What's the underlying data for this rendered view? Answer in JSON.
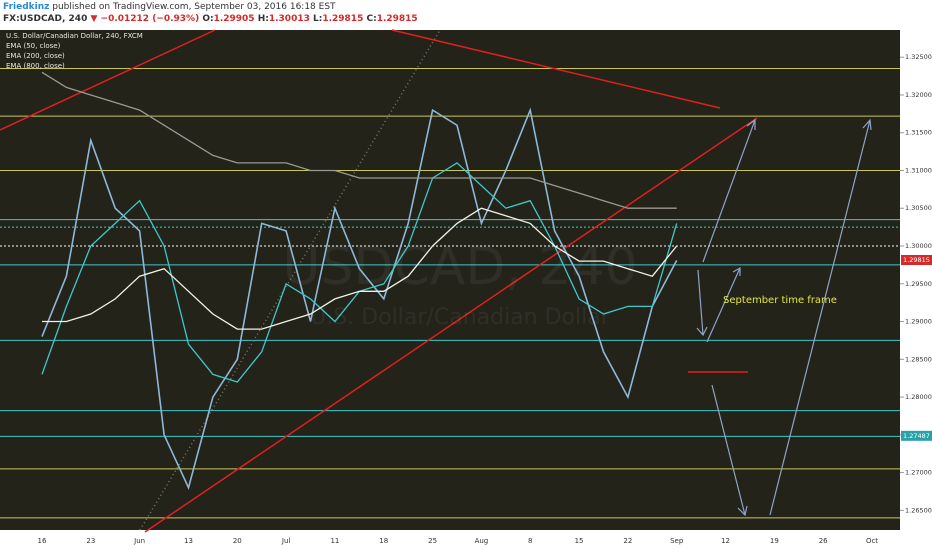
{
  "header": {
    "author": "Friedkinz",
    "published": "published on TradingView.com, September 03, 2016 16:18 EST",
    "symbol": "FX:USDCAD, 240",
    "change": "▼ −0.01212 (−0.93%)",
    "ohlc": [
      {
        "label": "O:",
        "value": "1.29905"
      },
      {
        "label": "H:",
        "value": "1.30013"
      },
      {
        "label": "L:",
        "value": "1.29815"
      },
      {
        "label": "C:",
        "value": "1.29815"
      }
    ]
  },
  "chart_data": {
    "type": "line",
    "watermark": "USDCAD, 240",
    "watermark_sub": "U.S. Dollar/Canadian Dollar",
    "annotation": "September time frame",
    "categories": [
      "16",
      null,
      "23",
      null,
      "Jun",
      null,
      "13",
      null,
      "20",
      null,
      "Jul",
      null,
      "11",
      null,
      "18",
      null,
      "25",
      null,
      "Aug",
      null,
      "8",
      null,
      "15",
      null,
      "22",
      null,
      "Sep",
      null,
      "12",
      null,
      "19",
      null,
      "26",
      null,
      "Oct"
    ],
    "series": [
      {
        "name": "U.S. Dollar/Canadian Dollar, 240, FXCM",
        "color": "#8fb8d8",
        "values": [
          1.288,
          1.296,
          1.314,
          1.305,
          1.302,
          1.275,
          1.268,
          1.28,
          1.285,
          1.303,
          1.302,
          1.29,
          1.305,
          1.297,
          1.293,
          1.303,
          1.318,
          1.316,
          1.303,
          1.31,
          1.318,
          1.302,
          1.296,
          1.286,
          1.28,
          1.292,
          1.2981,
          null,
          null,
          null,
          null,
          null,
          null,
          null,
          null
        ]
      },
      {
        "name": "EMA (50, close)",
        "color": "#3ec9c9",
        "values": [
          1.283,
          1.292,
          1.3,
          1.303,
          1.306,
          1.3,
          1.287,
          1.283,
          1.282,
          1.286,
          1.295,
          1.293,
          1.29,
          1.294,
          1.295,
          1.3,
          1.309,
          1.311,
          1.308,
          1.305,
          1.306,
          1.3,
          1.293,
          1.291,
          1.292,
          1.292,
          1.303,
          null,
          null,
          null,
          null,
          null,
          null,
          null,
          null
        ]
      },
      {
        "name": "EMA (200, close)",
        "color": "#f2f2e6",
        "values": [
          1.29,
          1.29,
          1.291,
          1.293,
          1.296,
          1.297,
          1.294,
          1.291,
          1.289,
          1.289,
          1.29,
          1.291,
          1.293,
          1.294,
          1.294,
          1.296,
          1.3,
          1.303,
          1.305,
          1.304,
          1.303,
          1.3,
          1.298,
          1.298,
          1.297,
          1.296,
          1.3,
          null,
          null,
          null,
          null,
          null,
          null,
          null,
          null
        ]
      },
      {
        "name": "EMA (800, close)",
        "color": "#9a9a94",
        "values": [
          1.323,
          1.321,
          1.32,
          1.319,
          1.318,
          1.316,
          1.314,
          1.312,
          1.311,
          1.311,
          1.311,
          1.31,
          1.31,
          1.309,
          1.309,
          1.309,
          1.309,
          1.309,
          1.309,
          1.309,
          1.309,
          1.308,
          1.307,
          1.306,
          1.305,
          1.305,
          1.305,
          null,
          null,
          null,
          null,
          null,
          null,
          null,
          null
        ]
      }
    ],
    "levels": [
      {
        "value": 1.3235,
        "color": "#c8c85a",
        "style": "solid"
      },
      {
        "value": 1.3172,
        "color": "#c8c85a",
        "style": "solid"
      },
      {
        "value": 1.31,
        "color": "#c8c85a",
        "style": "solid"
      },
      {
        "value": 1.3035,
        "color": "#3ec9c9",
        "style": "solid"
      },
      {
        "value": 1.3025,
        "color": "#3ec9c9",
        "style": "dotted"
      },
      {
        "value": 1.3,
        "color": "#ffffff",
        "style": "dotted"
      },
      {
        "value": 1.2975,
        "color": "#3ec9c9",
        "style": "solid"
      },
      {
        "value": 1.2875,
        "color": "#3ec9c9",
        "style": "solid"
      },
      {
        "value": 1.2782,
        "color": "#3ec9c9",
        "style": "solid"
      },
      {
        "value": 1.2748,
        "color": "#3ec9c9",
        "style": "solid"
      },
      {
        "value": 1.2705,
        "color": "#c8c85a",
        "style": "solid"
      },
      {
        "value": 1.264,
        "color": "#c8c85a",
        "style": "solid"
      }
    ],
    "price_labels": [
      {
        "value": 1.29815,
        "color": "#d42a2a"
      },
      {
        "value": 1.27487,
        "color": "#2aa0a8"
      }
    ],
    "ylim": [
      1.2624,
      1.3286
    ],
    "yticks": [
      {
        "value": 1.265,
        "label": "1.26500"
      },
      {
        "value": 1.27,
        "label": "1.27000"
      },
      {
        "value": 1.275,
        "label": "1.27500"
      },
      {
        "value": 1.28,
        "label": "1.28000"
      },
      {
        "value": 1.285,
        "label": "1.28500"
      },
      {
        "value": 1.29,
        "label": "1.29000"
      },
      {
        "value": 1.295,
        "label": "1.29500"
      },
      {
        "value": 1.3,
        "label": "1.30000"
      },
      {
        "value": 1.305,
        "label": "1.30500"
      },
      {
        "value": 1.31,
        "label": "1.31000"
      },
      {
        "value": 1.315,
        "label": "1.31500"
      },
      {
        "value": 1.32,
        "label": "1.32000"
      },
      {
        "value": 1.325,
        "label": "1.32500"
      }
    ]
  }
}
